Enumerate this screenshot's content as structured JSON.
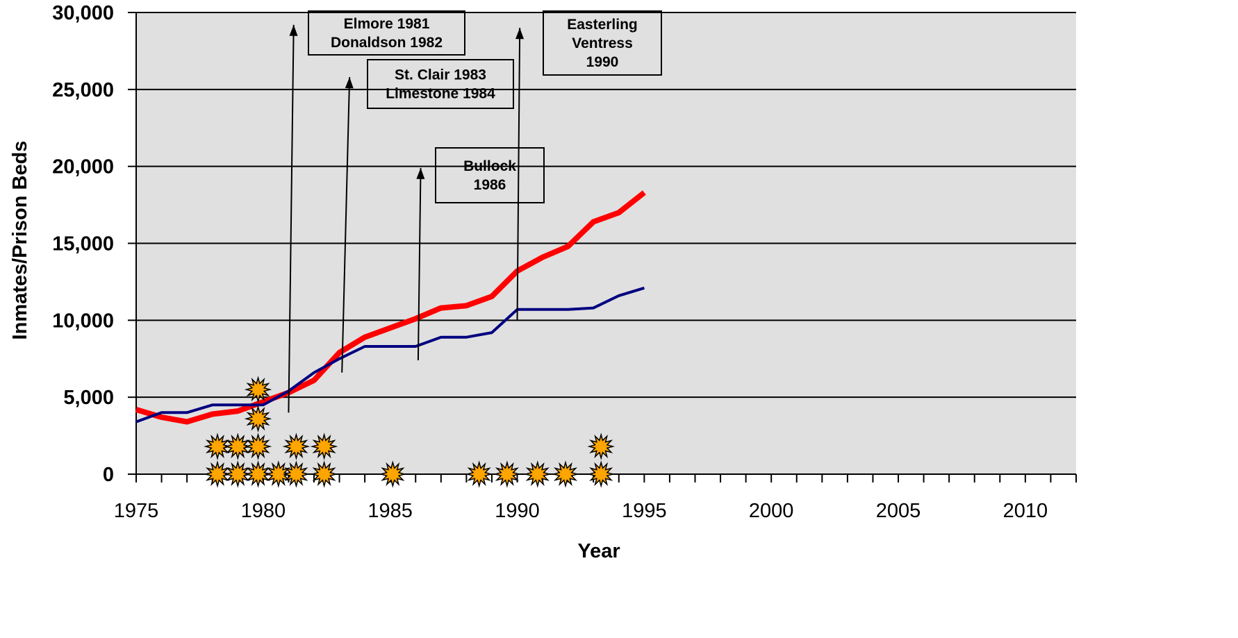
{
  "chart_data": {
    "type": "line",
    "title": "",
    "xlabel": "Year",
    "ylabel": "Inmates/Prison Beds",
    "xlim": [
      1975,
      2012
    ],
    "ylim": [
      0,
      30000
    ],
    "x_ticks": [
      1975,
      1980,
      1985,
      1990,
      1995,
      2000,
      2005,
      2010
    ],
    "y_ticks": [
      0,
      5000,
      10000,
      15000,
      20000,
      25000,
      30000
    ],
    "y_tick_labels": [
      "0",
      "5,000",
      "10,000",
      "15,000",
      "20,000",
      "25,000",
      "30,000"
    ],
    "grid": "horizontal",
    "plot_background": "#e0e0e0",
    "series": [
      {
        "color": "#ff0000",
        "width": 8,
        "x": [
          1975,
          1976,
          1977,
          1978,
          1979,
          1980,
          1981,
          1982,
          1983,
          1984,
          1985,
          1986,
          1987,
          1988,
          1989,
          1990,
          1991,
          1992,
          1993,
          1994,
          1995
        ],
        "values": [
          4200,
          3700,
          3400,
          3900,
          4100,
          4700,
          5300,
          6100,
          7900,
          8900,
          9500,
          10100,
          10800,
          10950,
          11550,
          13200,
          14100,
          14800,
          16400,
          17000,
          18300
        ]
      },
      {
        "color": "#000080",
        "width": 4,
        "x": [
          1975,
          1976,
          1977,
          1978,
          1979,
          1980,
          1981,
          1982,
          1983,
          1984,
          1985,
          1986,
          1987,
          1988,
          1989,
          1990,
          1991,
          1992,
          1993,
          1994,
          1995
        ],
        "values": [
          3400,
          4000,
          4000,
          4500,
          4500,
          4500,
          5400,
          6600,
          7500,
          8300,
          8300,
          8300,
          8900,
          8900,
          9200,
          10700,
          10700,
          10700,
          10800,
          11600,
          12100
        ]
      }
    ],
    "annotations": [
      {
        "lines": [
          "Elmore 1981",
          "Donaldson 1982"
        ],
        "arrow_x": [
          1981.0,
          1981.2
        ],
        "arrow_y": [
          4000,
          29200
        ]
      },
      {
        "lines": [
          "St. Clair 1983",
          "Limestone 1984"
        ],
        "arrow_x": [
          1983.1,
          1983.4
        ],
        "arrow_y": [
          6600,
          25800
        ]
      },
      {
        "lines": [
          "Bullock",
          "1986"
        ],
        "arrow_x": [
          1986.1,
          1986.2
        ],
        "arrow_y": [
          7400,
          19900
        ]
      },
      {
        "lines": [
          "Easterling",
          "Ventress",
          "1990"
        ],
        "arrow_x": [
          1990.0,
          1990.1
        ],
        "arrow_y": [
          10000,
          29000
        ]
      }
    ],
    "event_markers": {
      "color": "#ffa500",
      "outline": "#000000",
      "points": [
        {
          "x": 1978.2,
          "y": 0
        },
        {
          "x": 1979.0,
          "y": 0
        },
        {
          "x": 1979.8,
          "y": 0
        },
        {
          "x": 1980.6,
          "y": 0
        },
        {
          "x": 1981.3,
          "y": 0
        },
        {
          "x": 1982.4,
          "y": 0
        },
        {
          "x": 1985.1,
          "y": 0
        },
        {
          "x": 1988.5,
          "y": 0
        },
        {
          "x": 1989.6,
          "y": 0
        },
        {
          "x": 1990.8,
          "y": 0
        },
        {
          "x": 1991.9,
          "y": 0
        },
        {
          "x": 1993.3,
          "y": 0
        },
        {
          "x": 1978.2,
          "y": 1800
        },
        {
          "x": 1979.0,
          "y": 1800
        },
        {
          "x": 1979.8,
          "y": 1800
        },
        {
          "x": 1981.3,
          "y": 1800
        },
        {
          "x": 1982.4,
          "y": 1800
        },
        {
          "x": 1993.3,
          "y": 1800
        },
        {
          "x": 1979.8,
          "y": 3600
        },
        {
          "x": 1979.8,
          "y": 5500
        }
      ]
    }
  }
}
